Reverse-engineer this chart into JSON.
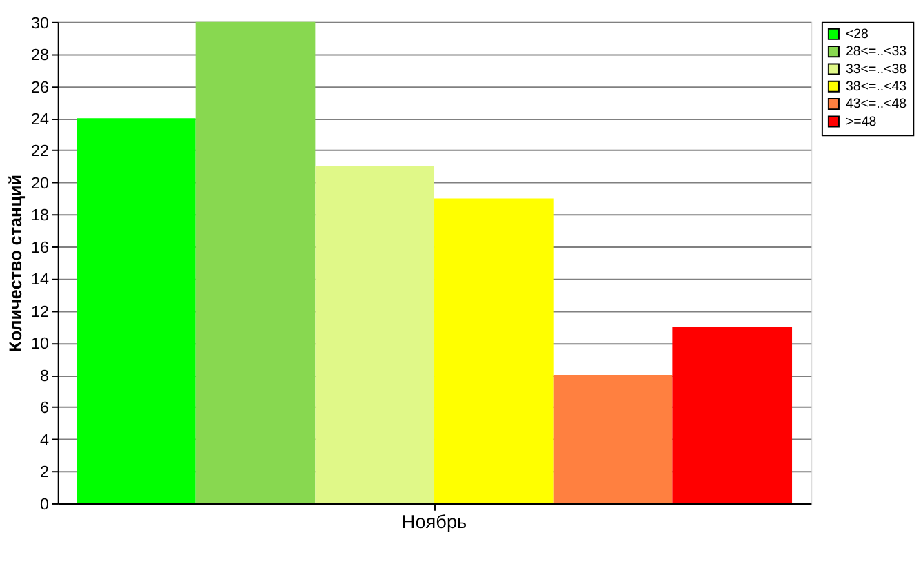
{
  "chart_data": {
    "type": "bar",
    "categories": [
      "Ноябрь"
    ],
    "ylabel": "Количество станций",
    "ylim": [
      0,
      30
    ],
    "yticks": [
      0,
      2,
      4,
      6,
      8,
      10,
      12,
      14,
      16,
      18,
      20,
      22,
      24,
      26,
      28,
      30
    ],
    "grid": "y",
    "legend": "top right",
    "series": [
      {
        "name": "<28",
        "color": "#00ff00",
        "values": [
          24
        ]
      },
      {
        "name": "28<=..<33",
        "color": "#88d850",
        "values": [
          30
        ]
      },
      {
        "name": "33<=..<38",
        "color": "#e0f888",
        "values": [
          21
        ]
      },
      {
        "name": "38<=..<43",
        "color": "#ffff00",
        "values": [
          19
        ]
      },
      {
        "name": "43<=..<48",
        "color": "#ff8040",
        "values": [
          8
        ]
      },
      {
        "name": ">=48",
        "color": "#ff0000",
        "values": [
          11
        ]
      }
    ]
  }
}
